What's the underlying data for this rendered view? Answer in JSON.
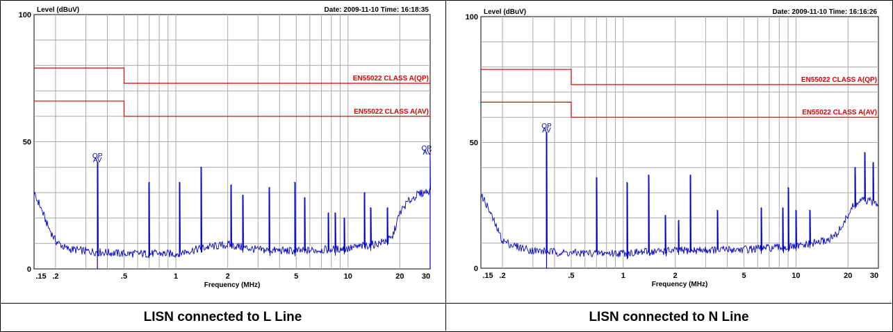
{
  "chart_data": [
    {
      "type": "line",
      "ylabel": "Level (dBuV)",
      "xlabel": "Frequency (MHz)",
      "header": "Date: 2009-11-10  Time: 16:18:35",
      "x_scale": "log",
      "xlim": [
        0.15,
        30
      ],
      "ylim": [
        0,
        100
      ],
      "x_tick_labels": [
        ".15",
        ".2",
        ".5",
        "1",
        "2",
        "5",
        "10",
        "20",
        "30"
      ],
      "y_tick_labels": [
        "0",
        "50",
        "100"
      ],
      "limits": [
        {
          "name": "EN55022 CLASS A(QP)",
          "x": [
            0.15,
            0.5,
            0.5,
            30
          ],
          "y": [
            79,
            79,
            73,
            73
          ]
        },
        {
          "name": "EN55022 CLASS A(AV)",
          "x": [
            0.15,
            0.5,
            0.5,
            30
          ],
          "y": [
            66,
            66,
            60,
            60
          ]
        }
      ],
      "markers": [
        {
          "x": 0.35,
          "y": 42,
          "labels": [
            "QP",
            "AV"
          ]
        },
        {
          "x": 30,
          "y": 45,
          "labels": [
            "QP",
            "AV"
          ]
        }
      ],
      "peaks": [
        {
          "x": 0.35,
          "y": 42
        },
        {
          "x": 0.7,
          "y": 34
        },
        {
          "x": 1.05,
          "y": 34
        },
        {
          "x": 1.4,
          "y": 40
        },
        {
          "x": 2.1,
          "y": 33
        },
        {
          "x": 2.45,
          "y": 29
        },
        {
          "x": 3.5,
          "y": 32
        },
        {
          "x": 4.9,
          "y": 34
        },
        {
          "x": 5.6,
          "y": 28
        },
        {
          "x": 7.7,
          "y": 22
        },
        {
          "x": 8.4,
          "y": 22
        },
        {
          "x": 9.5,
          "y": 20
        },
        {
          "x": 12.5,
          "y": 30
        },
        {
          "x": 13.5,
          "y": 24
        },
        {
          "x": 17,
          "y": 24
        },
        {
          "x": 30,
          "y": 45
        }
      ],
      "noise_floor": [
        [
          0.15,
          29
        ],
        [
          0.16,
          26
        ],
        [
          0.18,
          17
        ],
        [
          0.2,
          11
        ],
        [
          0.23,
          8
        ],
        [
          0.3,
          7
        ],
        [
          0.5,
          6
        ],
        [
          1,
          6
        ],
        [
          1.5,
          8.5
        ],
        [
          2,
          9.5
        ],
        [
          3,
          7.5
        ],
        [
          5,
          7
        ],
        [
          10,
          8
        ],
        [
          15,
          10
        ],
        [
          18,
          12
        ],
        [
          20,
          22
        ],
        [
          22,
          26
        ],
        [
          25,
          29
        ],
        [
          30,
          31
        ]
      ],
      "caption": "LISN connected to L Line"
    },
    {
      "type": "line",
      "ylabel": "Level (dBuV)",
      "xlabel": "Frequency (MHz)",
      "header": "Date: 2009-11-10  Time: 16:16:26",
      "x_scale": "log",
      "xlim": [
        0.15,
        30
      ],
      "ylim": [
        0,
        100
      ],
      "x_tick_labels": [
        ".15",
        ".2",
        ".5",
        "1",
        "2",
        "5",
        "10",
        "20",
        "30"
      ],
      "y_tick_labels": [
        "0",
        "50",
        "100"
      ],
      "limits": [
        {
          "name": "EN55022 CLASS A(QP)",
          "x": [
            0.15,
            0.5,
            0.5,
            30
          ],
          "y": [
            79,
            79,
            73,
            73
          ]
        },
        {
          "name": "EN55022 CLASS A(AV)",
          "x": [
            0.15,
            0.5,
            0.5,
            30
          ],
          "y": [
            66,
            66,
            60,
            60
          ]
        }
      ],
      "markers": [
        {
          "x": 0.36,
          "y": 54,
          "labels": [
            "QP",
            "AV"
          ]
        }
      ],
      "peaks": [
        {
          "x": 0.36,
          "y": 54
        },
        {
          "x": 0.7,
          "y": 36
        },
        {
          "x": 1.05,
          "y": 34
        },
        {
          "x": 1.4,
          "y": 37
        },
        {
          "x": 1.75,
          "y": 21
        },
        {
          "x": 2.1,
          "y": 19
        },
        {
          "x": 2.45,
          "y": 37
        },
        {
          "x": 3.5,
          "y": 23
        },
        {
          "x": 6.3,
          "y": 24
        },
        {
          "x": 8.4,
          "y": 24
        },
        {
          "x": 9,
          "y": 32
        },
        {
          "x": 10,
          "y": 23
        },
        {
          "x": 12,
          "y": 23
        },
        {
          "x": 22,
          "y": 40
        },
        {
          "x": 25,
          "y": 46
        },
        {
          "x": 28,
          "y": 42
        }
      ],
      "noise_floor": [
        [
          0.15,
          29
        ],
        [
          0.16,
          26
        ],
        [
          0.18,
          18
        ],
        [
          0.2,
          11
        ],
        [
          0.23,
          9
        ],
        [
          0.3,
          7
        ],
        [
          0.5,
          6
        ],
        [
          1,
          6
        ],
        [
          2,
          7
        ],
        [
          5,
          7.5
        ],
        [
          10,
          8.5
        ],
        [
          15,
          11
        ],
        [
          17,
          13
        ],
        [
          19,
          18
        ],
        [
          21,
          24
        ],
        [
          24,
          27
        ],
        [
          30,
          26
        ]
      ],
      "caption": "LISN connected to N Line"
    }
  ],
  "colors": {
    "trace": "#0000cc",
    "limit": "#e00000",
    "grid": "#a8a8a8",
    "text": "#000000"
  }
}
